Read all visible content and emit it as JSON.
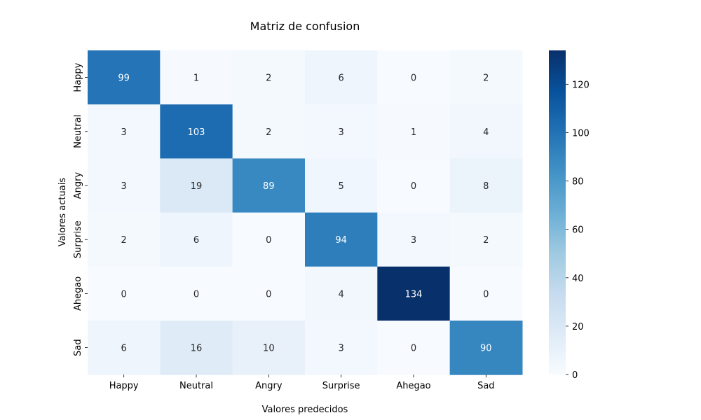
{
  "chart_data": {
    "type": "heatmap",
    "title": "Matriz de confusion",
    "xlabel": "Valores predecidos",
    "ylabel": "Valores actuais",
    "x_categories": [
      "Happy",
      "Neutral",
      "Angry",
      "Surprise",
      "Ahegao",
      "Sad"
    ],
    "y_categories": [
      "Happy",
      "Neutral",
      "Angry",
      "Surprise",
      "Ahegao",
      "Sad"
    ],
    "values": [
      [
        99,
        1,
        2,
        6,
        0,
        2
      ],
      [
        3,
        103,
        2,
        3,
        1,
        4
      ],
      [
        3,
        19,
        89,
        5,
        0,
        8
      ],
      [
        2,
        6,
        0,
        94,
        3,
        2
      ],
      [
        0,
        0,
        0,
        4,
        134,
        0
      ],
      [
        6,
        16,
        10,
        3,
        0,
        90
      ]
    ],
    "colormap": "Blues",
    "color_range": [
      0,
      134
    ],
    "colorbar_ticks": [
      0,
      20,
      40,
      60,
      80,
      100,
      120
    ],
    "colors": {
      "low": "#f7fbff",
      "high": "#08306b"
    }
  }
}
